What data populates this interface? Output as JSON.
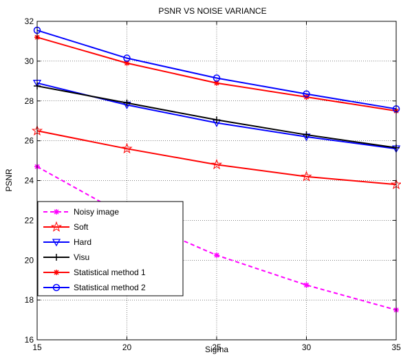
{
  "chart_data": {
    "type": "line",
    "title": "PSNR VS NOISE VARIANCE",
    "xlabel": "Sigma",
    "ylabel": "PSNR",
    "xlim": [
      15,
      35
    ],
    "ylim": [
      16,
      32
    ],
    "xticks": [
      15,
      20,
      25,
      30,
      35
    ],
    "yticks": [
      16,
      18,
      20,
      22,
      24,
      26,
      28,
      30,
      32
    ],
    "grid": true,
    "legend_position": "bottom-left",
    "x": [
      15,
      20,
      25,
      30,
      35
    ],
    "series": [
      {
        "name": "Noisy image",
        "values": [
          24.7,
          22.2,
          20.25,
          18.75,
          17.5
        ],
        "color": "#ff00ff",
        "dash": "dashed",
        "marker": "star"
      },
      {
        "name": "Soft",
        "values": [
          26.5,
          25.6,
          24.8,
          24.2,
          23.8
        ],
        "color": "#ff0000",
        "dash": "solid",
        "marker": "pentagram"
      },
      {
        "name": "Hard",
        "values": [
          28.9,
          27.8,
          26.9,
          26.2,
          25.6
        ],
        "color": "#0000ff",
        "dash": "solid",
        "marker": "triangle-down"
      },
      {
        "name": "Visu",
        "values": [
          28.75,
          27.9,
          27.05,
          26.3,
          25.65
        ],
        "color": "#000000",
        "dash": "solid",
        "marker": "plus"
      },
      {
        "name": "Statistical method 1",
        "values": [
          31.2,
          29.9,
          28.9,
          28.2,
          27.5
        ],
        "color": "#ff0000",
        "dash": "solid",
        "marker": "star"
      },
      {
        "name": "Statistical method 2",
        "values": [
          31.55,
          30.15,
          29.15,
          28.35,
          27.6
        ],
        "color": "#0000ff",
        "dash": "solid",
        "marker": "circle"
      }
    ]
  }
}
